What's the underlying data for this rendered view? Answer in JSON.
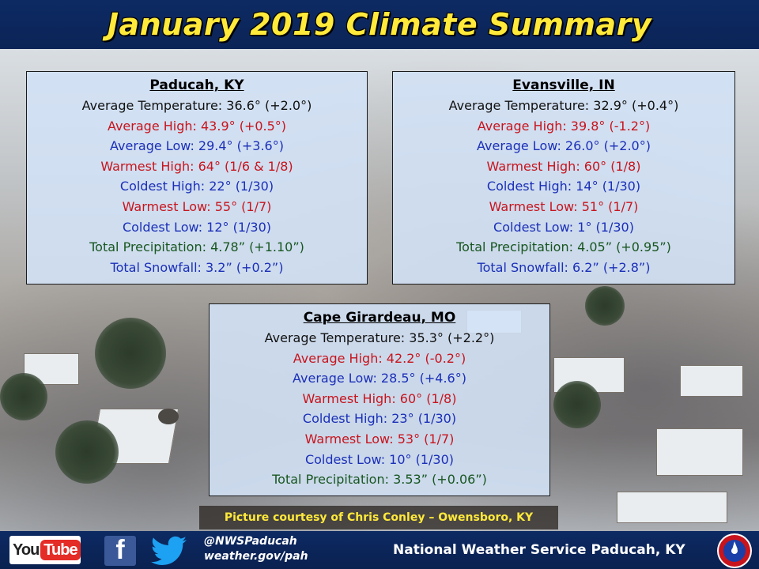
{
  "header": {
    "title": "January 2019 Climate Summary"
  },
  "stations": {
    "paducah": {
      "city": "Paducah, KY",
      "lines": [
        "Average Temperature: 36.6° (+2.0°)",
        "Average High: 43.9° (+0.5°)",
        "Average Low: 29.4° (+3.6°)",
        "Warmest High: 64° (1/6 & 1/8)",
        "Coldest High: 22° (1/30)",
        "Warmest Low: 55° (1/7)",
        "Coldest Low: 12° (1/30)",
        "Total Precipitation: 4.78” (+1.10”)",
        "Total Snowfall: 3.2” (+0.2”)"
      ]
    },
    "evansville": {
      "city": "Evansville, IN",
      "lines": [
        "Average Temperature: 32.9° (+0.4°)",
        "Average High: 39.8° (-1.2°)",
        "Average Low: 26.0° (+2.0°)",
        "Warmest High: 60° (1/8)",
        "Coldest High: 14° (1/30)",
        "Warmest Low: 51° (1/7)",
        "Coldest Low: 1° (1/30)",
        "Total Precipitation: 4.05” (+0.95”)",
        "Total Snowfall: 6.2” (+2.8”)"
      ]
    },
    "cape": {
      "city": "Cape Girardeau, MO",
      "lines": [
        "Average Temperature: 35.3° (+2.2°)",
        "Average High: 42.2° (-0.2°)",
        "Average Low: 28.5° (+4.6°)",
        "Warmest High: 60° (1/8)",
        "Coldest High: 23° (1/30)",
        "Warmest Low: 53° (1/7)",
        "Coldest Low: 10° (1/30)",
        "Total Precipitation: 3.53” (+0.06”)"
      ]
    }
  },
  "colors": {
    "black": "#111111",
    "red": "#c8141c",
    "blue": "#1b2fb8",
    "green": "#18561f",
    "header_bg": "#0d2a63",
    "title_yellow": "#ffe93a"
  },
  "credit": "Picture courtesy of Chris Conley – Owensboro, KY",
  "footer": {
    "youtube_you": "You",
    "youtube_tube": "Tube",
    "facebook_glyph": "f",
    "handle": "@NWSPaducah",
    "website": "weather.gov/pah",
    "office": "National Weather Service Paducah, KY",
    "icons": [
      "youtube-icon",
      "facebook-icon",
      "twitter-icon",
      "nws-logo-icon"
    ]
  }
}
